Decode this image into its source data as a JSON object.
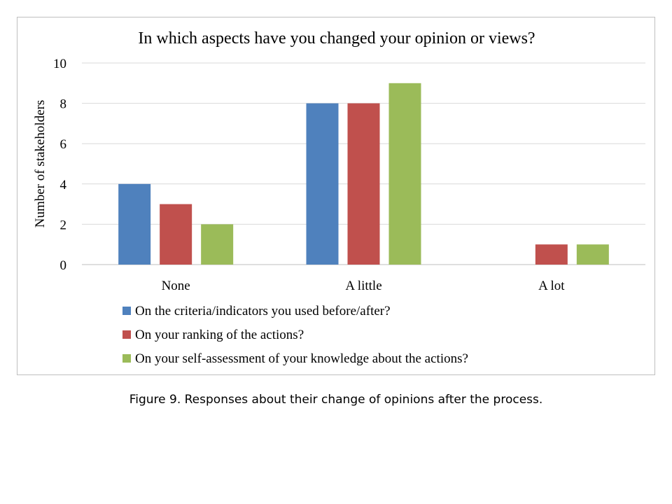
{
  "chart_data": {
    "type": "bar",
    "title": "In which aspects have you changed your opinion or views?",
    "xlabel": "",
    "ylabel": "Number of stakeholders",
    "categories": [
      "None",
      "A little",
      "A lot"
    ],
    "ylim": [
      0,
      10
    ],
    "yticks": [
      0,
      2,
      4,
      6,
      8,
      10
    ],
    "grid": true,
    "legend_position": "bottom",
    "series": [
      {
        "name": "On the criteria/indicators you used before/after?",
        "color": "#4f81bd",
        "values": [
          4,
          8,
          0
        ]
      },
      {
        "name": "On your ranking of the actions?",
        "color": "#c0504d",
        "values": [
          3,
          8,
          1
        ]
      },
      {
        "name": "On your self-assessment of your knowledge about the actions?",
        "color": "#9bbb59",
        "values": [
          2,
          9,
          1
        ]
      }
    ]
  },
  "caption": "Figure 9. Responses about their change of opinions after the process."
}
